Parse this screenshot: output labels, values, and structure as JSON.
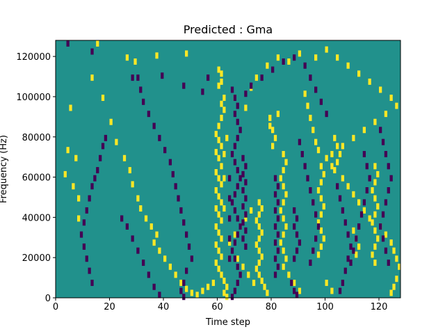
{
  "chart_data": {
    "type": "heatmap",
    "title": "Predicted : Gma",
    "xlabel": "Time step",
    "ylabel": "Frequency (Hz)",
    "xlim": [
      0,
      128
    ],
    "ylim": [
      0,
      128000
    ],
    "x_ticks": [
      0,
      20,
      40,
      60,
      80,
      100,
      120
    ],
    "y_ticks": [
      0,
      20000,
      40000,
      60000,
      80000,
      100000,
      120000
    ],
    "x_tick_labels": [
      "0",
      "20",
      "40",
      "60",
      "80",
      "100",
      "120"
    ],
    "y_tick_labels": [
      "0",
      "20000",
      "40000",
      "60000",
      "80000",
      "100000",
      "120000"
    ],
    "grid": false,
    "colormap": "viridis",
    "colors": {
      "background_teal": "#21918c",
      "low_purple": "#440154",
      "high_yellow": "#fde725"
    },
    "n_time_steps": 128,
    "n_freq_bins": 128,
    "description_of_cells": "Mostly teal (mid) values; sparse yellow (high) and purple (low) cells, with a dense vertical band of yellow around time steps 59-63 and purple around 63-70.",
    "high_cells": [
      [
        15,
        127
      ],
      [
        26,
        120
      ],
      [
        37,
        121
      ],
      [
        48,
        122
      ],
      [
        17,
        100
      ],
      [
        29,
        118
      ],
      [
        60,
        114
      ],
      [
        61,
        112
      ],
      [
        60,
        106
      ],
      [
        61,
        108
      ],
      [
        62,
        100
      ],
      [
        61,
        97
      ],
      [
        62,
        94
      ],
      [
        61,
        90
      ],
      [
        60,
        86
      ],
      [
        59,
        82
      ],
      [
        60,
        79
      ],
      [
        61,
        76
      ],
      [
        59,
        73
      ],
      [
        60,
        70
      ],
      [
        61,
        66
      ],
      [
        59,
        63
      ],
      [
        60,
        60
      ],
      [
        61,
        57
      ],
      [
        59,
        54
      ],
      [
        60,
        51
      ],
      [
        61,
        48
      ],
      [
        59,
        45
      ],
      [
        60,
        42
      ],
      [
        61,
        39
      ],
      [
        59,
        36
      ],
      [
        60,
        33
      ],
      [
        61,
        30
      ],
      [
        59,
        27
      ],
      [
        60,
        24
      ],
      [
        61,
        21
      ],
      [
        59,
        18
      ],
      [
        60,
        15
      ],
      [
        61,
        12
      ],
      [
        62,
        9
      ],
      [
        63,
        6
      ],
      [
        62,
        3
      ],
      [
        63,
        1
      ],
      [
        62,
        45
      ],
      [
        62,
        72
      ],
      [
        63,
        80
      ],
      [
        62,
        60
      ],
      [
        75,
        48
      ],
      [
        76,
        45
      ],
      [
        75,
        42
      ],
      [
        74,
        39
      ],
      [
        75,
        36
      ],
      [
        76,
        33
      ],
      [
        75,
        30
      ],
      [
        74,
        27
      ],
      [
        75,
        24
      ],
      [
        76,
        21
      ],
      [
        75,
        18
      ],
      [
        74,
        15
      ],
      [
        75,
        12
      ],
      [
        76,
        9
      ],
      [
        77,
        6
      ],
      [
        78,
        3
      ],
      [
        84,
        72
      ],
      [
        85,
        68
      ],
      [
        84,
        64
      ],
      [
        83,
        60
      ],
      [
        84,
        56
      ],
      [
        85,
        52
      ],
      [
        84,
        48
      ],
      [
        83,
        44
      ],
      [
        84,
        40
      ],
      [
        85,
        36
      ],
      [
        84,
        32
      ],
      [
        83,
        28
      ],
      [
        84,
        24
      ],
      [
        85,
        20
      ],
      [
        84,
        16
      ],
      [
        79,
        90
      ],
      [
        80,
        84
      ],
      [
        81,
        80
      ],
      [
        80,
        76
      ],
      [
        79,
        86
      ],
      [
        82,
        92
      ],
      [
        98,
        66
      ],
      [
        99,
        62
      ],
      [
        98,
        58
      ],
      [
        97,
        54
      ],
      [
        98,
        50
      ],
      [
        99,
        46
      ],
      [
        98,
        42
      ],
      [
        97,
        38
      ],
      [
        98,
        34
      ],
      [
        99,
        30
      ],
      [
        98,
        26
      ],
      [
        97,
        22
      ],
      [
        118,
        66
      ],
      [
        119,
        62
      ],
      [
        118,
        58
      ],
      [
        117,
        54
      ],
      [
        118,
        50
      ],
      [
        119,
        46
      ],
      [
        118,
        42
      ],
      [
        117,
        38
      ],
      [
        118,
        34
      ],
      [
        119,
        30
      ],
      [
        118,
        26
      ],
      [
        117,
        22
      ],
      [
        118,
        18
      ],
      [
        110,
        34
      ],
      [
        111,
        30
      ],
      [
        112,
        26
      ],
      [
        111,
        22
      ],
      [
        103,
        80
      ],
      [
        104,
        76
      ],
      [
        105,
        72
      ],
      [
        104,
        68
      ],
      [
        103,
        64
      ],
      [
        8,
        50
      ],
      [
        7,
        70
      ],
      [
        6,
        56
      ],
      [
        8,
        40
      ],
      [
        4,
        74
      ],
      [
        3,
        62
      ],
      [
        5,
        95
      ],
      [
        13,
        110
      ],
      [
        20,
        88
      ],
      [
        22,
        78
      ],
      [
        25,
        70
      ],
      [
        27,
        64
      ],
      [
        28,
        57
      ],
      [
        30,
        50
      ],
      [
        31,
        45
      ],
      [
        33,
        40
      ],
      [
        35,
        36
      ],
      [
        37,
        32
      ],
      [
        36,
        28
      ],
      [
        38,
        24
      ],
      [
        40,
        20
      ],
      [
        42,
        16
      ],
      [
        44,
        12
      ],
      [
        46,
        8
      ],
      [
        48,
        5
      ],
      [
        50,
        3
      ],
      [
        52,
        2
      ],
      [
        54,
        4
      ],
      [
        56,
        6
      ],
      [
        58,
        8
      ],
      [
        92,
        102
      ],
      [
        93,
        96
      ],
      [
        94,
        90
      ],
      [
        95,
        84
      ],
      [
        96,
        78
      ],
      [
        97,
        74
      ],
      [
        100,
        70
      ],
      [
        102,
        66
      ],
      [
        106,
        60
      ],
      [
        108,
        56
      ],
      [
        110,
        52
      ],
      [
        112,
        48
      ],
      [
        114,
        44
      ],
      [
        116,
        40
      ],
      [
        120,
        36
      ],
      [
        122,
        32
      ],
      [
        124,
        28
      ],
      [
        125,
        24
      ],
      [
        126,
        20
      ],
      [
        127,
        16
      ],
      [
        126,
        10
      ],
      [
        125,
        6
      ],
      [
        124,
        3
      ],
      [
        100,
        8
      ],
      [
        102,
        4
      ],
      [
        90,
        4
      ],
      [
        88,
        8
      ],
      [
        86,
        12
      ],
      [
        70,
        40
      ],
      [
        72,
        44
      ],
      [
        68,
        36
      ],
      [
        66,
        32
      ],
      [
        64,
        28
      ],
      [
        67,
        20
      ],
      [
        69,
        16
      ],
      [
        71,
        12
      ],
      [
        73,
        8
      ],
      [
        66,
        100
      ],
      [
        70,
        95
      ],
      [
        72,
        105
      ],
      [
        74,
        110
      ],
      [
        78,
        116
      ],
      [
        82,
        120
      ],
      [
        86,
        118
      ],
      [
        90,
        122
      ],
      [
        96,
        120
      ],
      [
        100,
        124
      ],
      [
        104,
        120
      ],
      [
        108,
        116
      ],
      [
        112,
        112
      ],
      [
        116,
        108
      ],
      [
        120,
        104
      ],
      [
        124,
        100
      ],
      [
        126,
        96
      ],
      [
        122,
        92
      ],
      [
        118,
        88
      ],
      [
        114,
        84
      ],
      [
        110,
        80
      ],
      [
        106,
        76
      ],
      [
        102,
        72
      ]
    ],
    "low_cells": [
      [
        4,
        127
      ],
      [
        13,
        123
      ],
      [
        28,
        110
      ],
      [
        39,
        111
      ],
      [
        47,
        106
      ],
      [
        54,
        103
      ],
      [
        56,
        110
      ],
      [
        65,
        104
      ],
      [
        66,
        100
      ],
      [
        67,
        96
      ],
      [
        66,
        92
      ],
      [
        67,
        88
      ],
      [
        68,
        84
      ],
      [
        67,
        80
      ],
      [
        66,
        76
      ],
      [
        65,
        72
      ],
      [
        66,
        68
      ],
      [
        67,
        64
      ],
      [
        68,
        60
      ],
      [
        67,
        56
      ],
      [
        66,
        52
      ],
      [
        65,
        48
      ],
      [
        66,
        44
      ],
      [
        67,
        40
      ],
      [
        68,
        36
      ],
      [
        67,
        32
      ],
      [
        66,
        28
      ],
      [
        65,
        24
      ],
      [
        66,
        20
      ],
      [
        67,
        16
      ],
      [
        68,
        12
      ],
      [
        67,
        8
      ],
      [
        66,
        4
      ],
      [
        65,
        1
      ],
      [
        64,
        60
      ],
      [
        64,
        50
      ],
      [
        64,
        40
      ],
      [
        64,
        30
      ],
      [
        64,
        20
      ],
      [
        69,
        70
      ],
      [
        70,
        66
      ],
      [
        69,
        62
      ],
      [
        70,
        58
      ],
      [
        69,
        54
      ],
      [
        70,
        50
      ],
      [
        69,
        46
      ],
      [
        70,
        42
      ],
      [
        69,
        38
      ],
      [
        70,
        34
      ],
      [
        69,
        30
      ],
      [
        70,
        26
      ],
      [
        81,
        60
      ],
      [
        82,
        56
      ],
      [
        81,
        52
      ],
      [
        82,
        48
      ],
      [
        81,
        44
      ],
      [
        82,
        40
      ],
      [
        81,
        36
      ],
      [
        82,
        32
      ],
      [
        81,
        28
      ],
      [
        82,
        24
      ],
      [
        81,
        20
      ],
      [
        82,
        16
      ],
      [
        81,
        12
      ],
      [
        88,
        44
      ],
      [
        89,
        40
      ],
      [
        88,
        36
      ],
      [
        89,
        32
      ],
      [
        90,
        28
      ],
      [
        89,
        24
      ],
      [
        88,
        20
      ],
      [
        87,
        8
      ],
      [
        88,
        4
      ],
      [
        89,
        2
      ],
      [
        18,
        80
      ],
      [
        17,
        76
      ],
      [
        16,
        70
      ],
      [
        15,
        64
      ],
      [
        14,
        60
      ],
      [
        13,
        56
      ],
      [
        12,
        50
      ],
      [
        11,
        44
      ],
      [
        10,
        38
      ],
      [
        9,
        32
      ],
      [
        10,
        26
      ],
      [
        11,
        20
      ],
      [
        12,
        14
      ],
      [
        13,
        8
      ],
      [
        30,
        110
      ],
      [
        31,
        104
      ],
      [
        32,
        98
      ],
      [
        34,
        92
      ],
      [
        36,
        86
      ],
      [
        38,
        80
      ],
      [
        40,
        74
      ],
      [
        42,
        68
      ],
      [
        43,
        62
      ],
      [
        44,
        56
      ],
      [
        45,
        50
      ],
      [
        46,
        44
      ],
      [
        47,
        38
      ],
      [
        48,
        32
      ],
      [
        49,
        26
      ],
      [
        50,
        20
      ],
      [
        48,
        14
      ],
      [
        47,
        8
      ],
      [
        46,
        4
      ],
      [
        47,
        1
      ],
      [
        90,
        78
      ],
      [
        91,
        72
      ],
      [
        92,
        66
      ],
      [
        93,
        60
      ],
      [
        94,
        54
      ],
      [
        95,
        48
      ],
      [
        96,
        42
      ],
      [
        97,
        36
      ],
      [
        96,
        30
      ],
      [
        95,
        24
      ],
      [
        94,
        18
      ],
      [
        104,
        56
      ],
      [
        105,
        50
      ],
      [
        106,
        44
      ],
      [
        107,
        38
      ],
      [
        108,
        32
      ],
      [
        109,
        26
      ],
      [
        108,
        20
      ],
      [
        107,
        14
      ],
      [
        106,
        8
      ],
      [
        105,
        4
      ],
      [
        114,
        72
      ],
      [
        115,
        66
      ],
      [
        116,
        60
      ],
      [
        115,
        54
      ],
      [
        114,
        48
      ],
      [
        113,
        42
      ],
      [
        112,
        36
      ],
      [
        111,
        30
      ],
      [
        110,
        24
      ],
      [
        109,
        18
      ],
      [
        120,
        84
      ],
      [
        121,
        78
      ],
      [
        122,
        72
      ],
      [
        123,
        66
      ],
      [
        124,
        60
      ],
      [
        123,
        54
      ],
      [
        122,
        48
      ],
      [
        121,
        42
      ],
      [
        120,
        36
      ],
      [
        121,
        30
      ],
      [
        122,
        24
      ],
      [
        123,
        18
      ],
      [
        100,
        92
      ],
      [
        98,
        98
      ],
      [
        96,
        104
      ],
      [
        94,
        110
      ],
      [
        92,
        116
      ],
      [
        88,
        120
      ],
      [
        84,
        118
      ],
      [
        80,
        114
      ],
      [
        76,
        110
      ],
      [
        72,
        106
      ],
      [
        70,
        102
      ],
      [
        24,
        40
      ],
      [
        26,
        36
      ],
      [
        28,
        30
      ],
      [
        30,
        24
      ],
      [
        32,
        18
      ],
      [
        34,
        12
      ],
      [
        36,
        6
      ],
      [
        38,
        2
      ]
    ]
  }
}
